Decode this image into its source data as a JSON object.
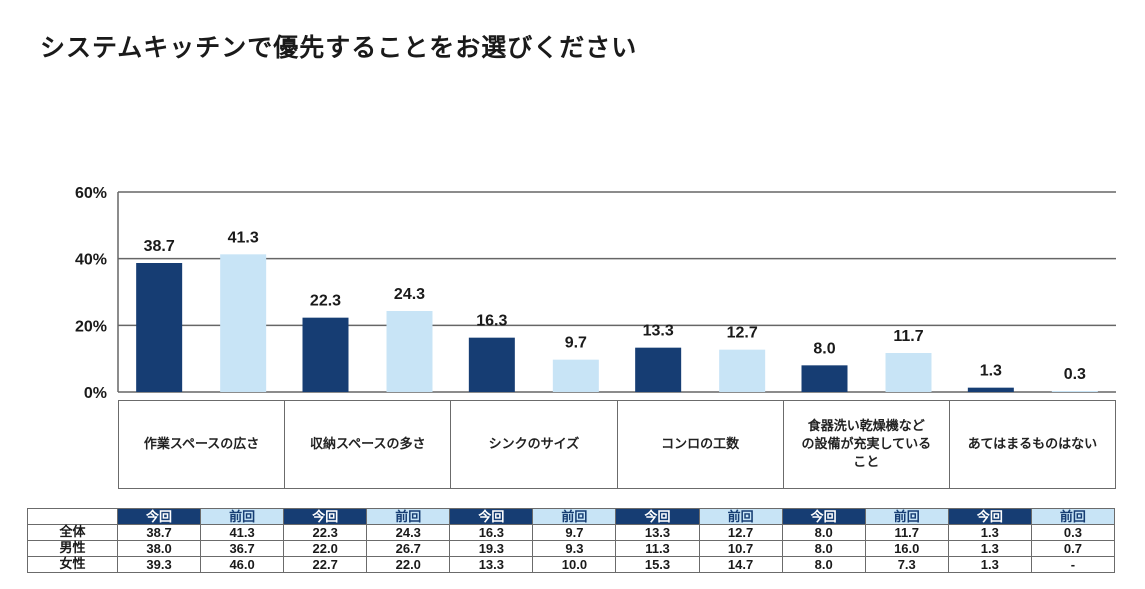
{
  "title": "システムキッチンで優先することをお選びください",
  "colors": {
    "current": "#163d73",
    "previous": "#c8e4f6",
    "grid": "#666666"
  },
  "chart_data": {
    "type": "bar",
    "title": "システムキッチンで優先することをお選びください",
    "xlabel": "",
    "ylabel": "",
    "ylim": [
      0,
      60
    ],
    "yticks": [
      0,
      20,
      40,
      60
    ],
    "ytick_labels": [
      "0%",
      "20%",
      "40%",
      "60%"
    ],
    "grid": true,
    "categories": [
      "作業スペースの広さ",
      "収納スペースの多さ",
      "シンクのサイズ",
      "コンロの工数",
      "食器洗い乾燥機などの設備が充実していること",
      "あてはまるものはない"
    ],
    "series": [
      {
        "name": "今回",
        "values": [
          38.7,
          22.3,
          16.3,
          13.3,
          8.0,
          1.3
        ],
        "labels": [
          "38.7",
          "22.3",
          "16.3",
          "13.3",
          "8.0",
          "1.3"
        ]
      },
      {
        "name": "前回",
        "values": [
          41.3,
          24.3,
          9.7,
          12.7,
          11.7,
          0.3
        ],
        "labels": [
          "41.3",
          "24.3",
          "9.7",
          "12.7",
          "11.7",
          "0.3"
        ]
      }
    ]
  },
  "category_boxes": [
    "作業スペースの広さ",
    "収納スペースの多さ",
    "シンクのサイズ",
    "コンロの工数",
    "食器洗い乾燥機など\nの設備が充実している\nこと",
    "あてはまるものはない"
  ],
  "table": {
    "header": [
      "今回",
      "前回",
      "今回",
      "前回",
      "今回",
      "前回",
      "今回",
      "前回",
      "今回",
      "前回",
      "今回",
      "前回"
    ],
    "rows": [
      {
        "label": "全体",
        "values": [
          "38.7",
          "41.3",
          "22.3",
          "24.3",
          "16.3",
          "9.7",
          "13.3",
          "12.7",
          "8.0",
          "11.7",
          "1.3",
          "0.3"
        ]
      },
      {
        "label": "男性",
        "values": [
          "38.0",
          "36.7",
          "22.0",
          "26.7",
          "19.3",
          "9.3",
          "11.3",
          "10.7",
          "8.0",
          "16.0",
          "1.3",
          "0.7"
        ]
      },
      {
        "label": "女性",
        "values": [
          "39.3",
          "46.0",
          "22.7",
          "22.0",
          "13.3",
          "10.0",
          "15.3",
          "14.7",
          "8.0",
          "7.3",
          "1.3",
          "-"
        ]
      }
    ]
  }
}
